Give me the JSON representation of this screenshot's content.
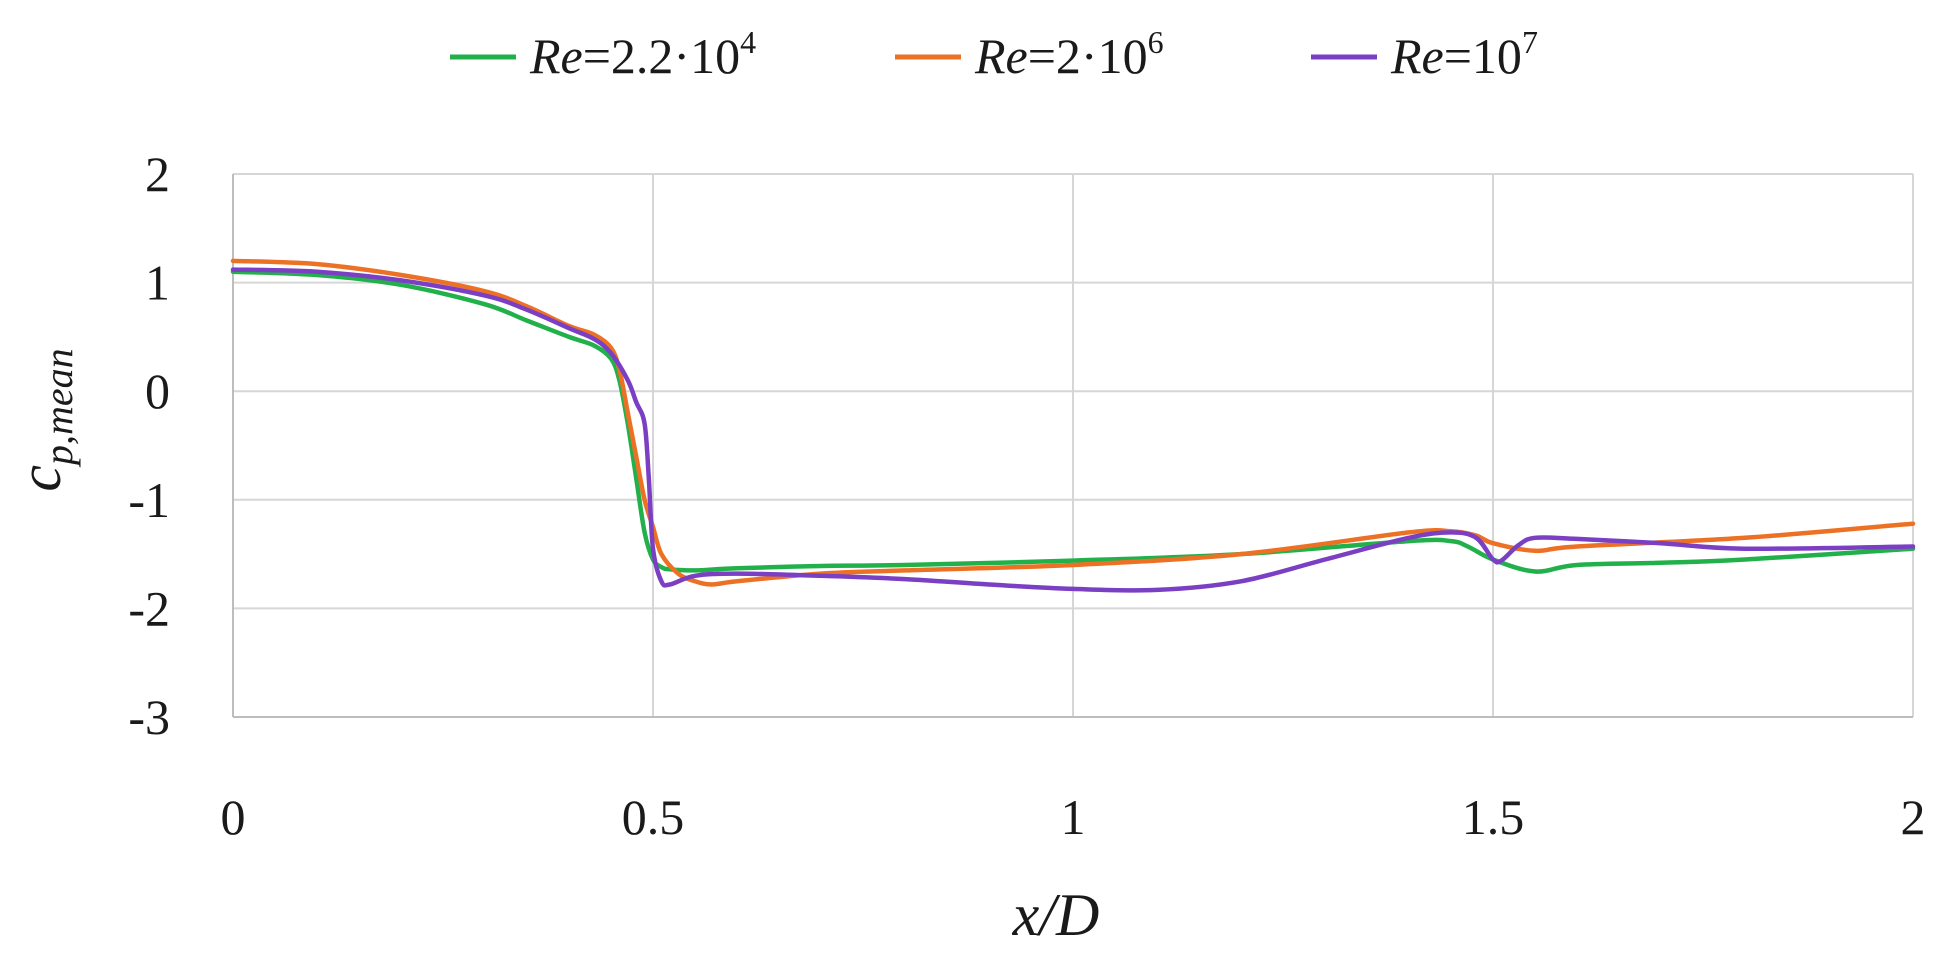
{
  "chart_data": {
    "type": "line",
    "xlabel": "x/D",
    "ylabel": {
      "base": "c",
      "sub": "p,mean"
    },
    "xlim": [
      0,
      2
    ],
    "ylim": [
      -3,
      2
    ],
    "x_ticks": [
      "0",
      "0.5",
      "1",
      "1.5",
      "2"
    ],
    "y_ticks": [
      "2",
      "1",
      "0",
      "-1",
      "-2",
      "-3"
    ],
    "grid": true,
    "legend_position": "top",
    "series": [
      {
        "name": "Re=2.2·10⁴",
        "legend": {
          "prefix": "Re",
          "mid": "=2.2·10",
          "sup": "4"
        },
        "color": "#22b04b",
        "x": [
          0,
          0.1,
          0.2,
          0.3,
          0.35,
          0.4,
          0.43,
          0.45,
          0.46,
          0.47,
          0.48,
          0.49,
          0.5,
          0.51,
          0.52,
          0.55,
          0.6,
          0.7,
          0.8,
          1.0,
          1.2,
          1.4,
          1.45,
          1.47,
          1.5,
          1.55,
          1.6,
          1.7,
          1.8,
          2.0
        ],
        "y": [
          1.1,
          1.07,
          0.98,
          0.8,
          0.65,
          0.5,
          0.42,
          0.3,
          0.1,
          -0.3,
          -0.8,
          -1.3,
          -1.55,
          -1.62,
          -1.64,
          -1.65,
          -1.63,
          -1.61,
          -1.6,
          -1.56,
          -1.5,
          -1.38,
          -1.38,
          -1.43,
          -1.55,
          -1.66,
          -1.6,
          -1.58,
          -1.55,
          -1.45
        ]
      },
      {
        "name": "Re=2·10⁶",
        "legend": {
          "prefix": "Re",
          "mid": "=2·10",
          "sup": "6"
        },
        "color": "#ed7125",
        "x": [
          0,
          0.1,
          0.2,
          0.3,
          0.35,
          0.4,
          0.43,
          0.45,
          0.46,
          0.47,
          0.48,
          0.49,
          0.5,
          0.51,
          0.53,
          0.55,
          0.57,
          0.6,
          0.7,
          0.8,
          1.0,
          1.2,
          1.4,
          1.45,
          1.48,
          1.5,
          1.55,
          1.6,
          1.8,
          2.0
        ],
        "y": [
          1.2,
          1.17,
          1.07,
          0.92,
          0.78,
          0.6,
          0.52,
          0.4,
          0.2,
          -0.2,
          -0.6,
          -1.0,
          -1.25,
          -1.5,
          -1.68,
          -1.75,
          -1.78,
          -1.75,
          -1.68,
          -1.65,
          -1.6,
          -1.5,
          -1.3,
          -1.29,
          -1.33,
          -1.4,
          -1.47,
          -1.43,
          -1.35,
          -1.22
        ]
      },
      {
        "name": "Re=10⁷",
        "legend": {
          "prefix": "Re",
          "mid": "=10",
          "sup": "7"
        },
        "color": "#7b3fc4",
        "x": [
          0,
          0.1,
          0.2,
          0.3,
          0.35,
          0.4,
          0.43,
          0.45,
          0.47,
          0.48,
          0.49,
          0.495,
          0.5,
          0.51,
          0.52,
          0.55,
          0.6,
          0.7,
          0.8,
          0.9,
          1.0,
          1.1,
          1.2,
          1.3,
          1.4,
          1.45,
          1.48,
          1.5,
          1.51,
          1.53,
          1.55,
          1.6,
          1.7,
          1.8,
          2.0
        ],
        "y": [
          1.12,
          1.1,
          1.02,
          0.88,
          0.75,
          0.58,
          0.48,
          0.35,
          0.1,
          -0.1,
          -0.3,
          -0.8,
          -1.45,
          -1.75,
          -1.78,
          -1.7,
          -1.68,
          -1.7,
          -1.73,
          -1.78,
          -1.82,
          -1.83,
          -1.75,
          -1.55,
          -1.35,
          -1.3,
          -1.35,
          -1.55,
          -1.56,
          -1.42,
          -1.35,
          -1.36,
          -1.4,
          -1.45,
          -1.43
        ]
      }
    ]
  }
}
